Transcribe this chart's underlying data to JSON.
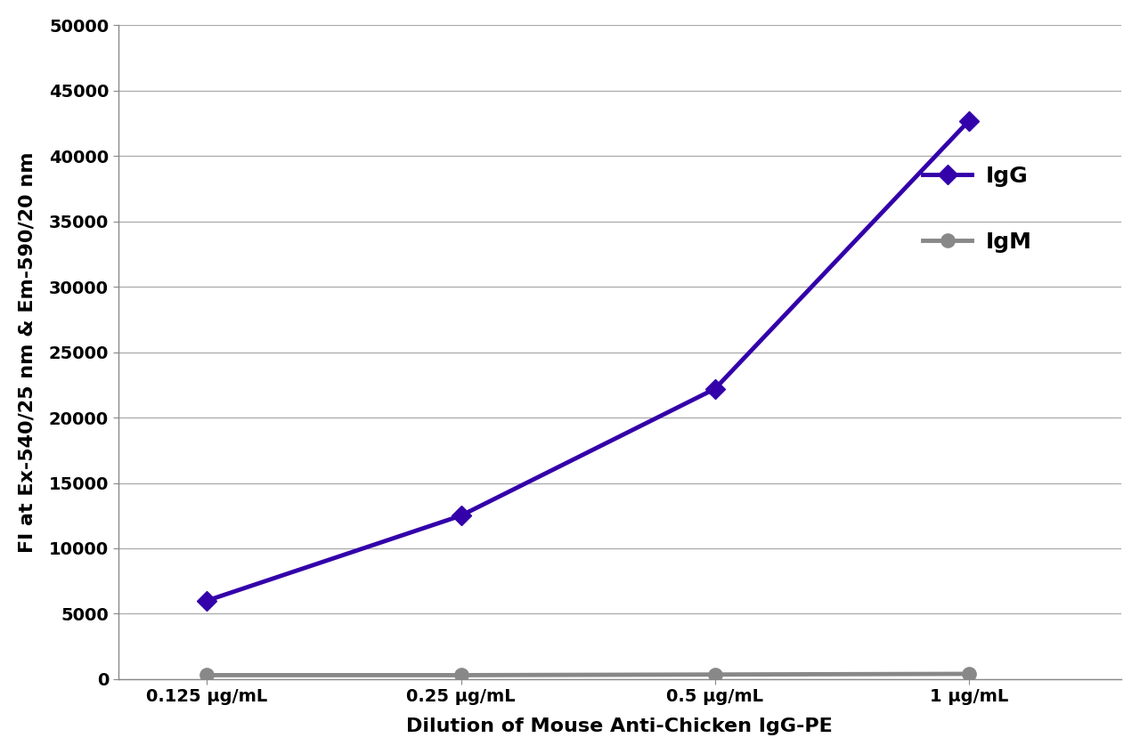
{
  "x_labels": [
    "0.125 μg/mL",
    "0.25 μg/mL",
    "0.5 μg/mL",
    "1 μg/mL"
  ],
  "x_positions": [
    0,
    1,
    2,
    3
  ],
  "IgG_values": [
    6000,
    12500,
    22200,
    42700
  ],
  "IgM_values": [
    300,
    300,
    350,
    400
  ],
  "IgG_color": "#3300AA",
  "IgM_color": "#888888",
  "IgG_label": "IgG",
  "IgM_label": "IgM",
  "ylabel": "FI at Ex-540/25 nm & Em-590/20 nm",
  "xlabel": "Dilution of Mouse Anti-Chicken IgG-PE",
  "ylim": [
    0,
    50000
  ],
  "yticks": [
    0,
    5000,
    10000,
    15000,
    20000,
    25000,
    30000,
    35000,
    40000,
    45000,
    50000
  ],
  "ytick_labels": [
    "0",
    "5000",
    "10000",
    "15000",
    "20000",
    "25000",
    "30000",
    "35000",
    "40000",
    "45000",
    "50000"
  ],
  "background_color": "#ffffff",
  "plot_bg_color": "#ffffff",
  "grid_color": "#aaaaaa",
  "line_width": 3.5,
  "marker_size": 11,
  "label_fontsize": 16,
  "tick_fontsize": 14,
  "legend_fontsize": 18
}
